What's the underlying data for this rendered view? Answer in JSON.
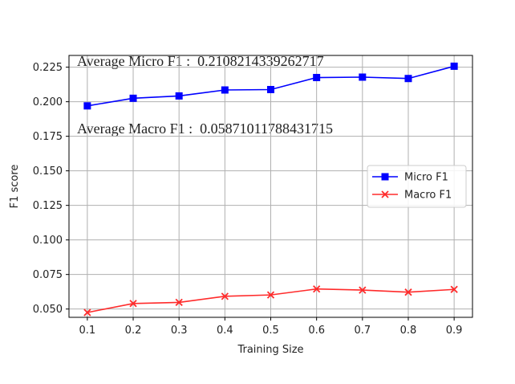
{
  "output": {
    "micro_line": "Average Micro F1 :  0.2108214339262717",
    "macro_line": "Average Macro F1 :  0.05871011788431715"
  },
  "chart_data": {
    "type": "line",
    "x": [
      0.1,
      0.2,
      0.3,
      0.4,
      0.5,
      0.6,
      0.7,
      0.8,
      0.9
    ],
    "x_tick_labels": [
      "0.1",
      "0.2",
      "0.3",
      "0.4",
      "0.5",
      "0.6",
      "0.7",
      "0.8",
      "0.9"
    ],
    "y_ticks": [
      0.05,
      0.075,
      0.1,
      0.125,
      0.15,
      0.175,
      0.2,
      0.225
    ],
    "y_tick_labels": [
      "0.050",
      "0.075",
      "0.100",
      "0.125",
      "0.150",
      "0.175",
      "0.200",
      "0.225"
    ],
    "series": [
      {
        "name": "Micro F1",
        "color": "#0000ff",
        "marker": "square",
        "values": [
          0.197,
          0.2025,
          0.2042,
          0.2085,
          0.2088,
          0.2175,
          0.2178,
          0.2168,
          0.2257
        ]
      },
      {
        "name": "Macro F1",
        "color": "#ff2b2b",
        "marker": "x",
        "values": [
          0.0475,
          0.054,
          0.0548,
          0.0592,
          0.0602,
          0.0645,
          0.0637,
          0.0622,
          0.0642
        ]
      }
    ],
    "xlabel": "Training Size",
    "ylabel": "F1 score",
    "xlim": [
      0.06,
      0.94
    ],
    "ylim": [
      0.044,
      0.2335
    ],
    "grid": true,
    "legend_position": "center-right"
  }
}
